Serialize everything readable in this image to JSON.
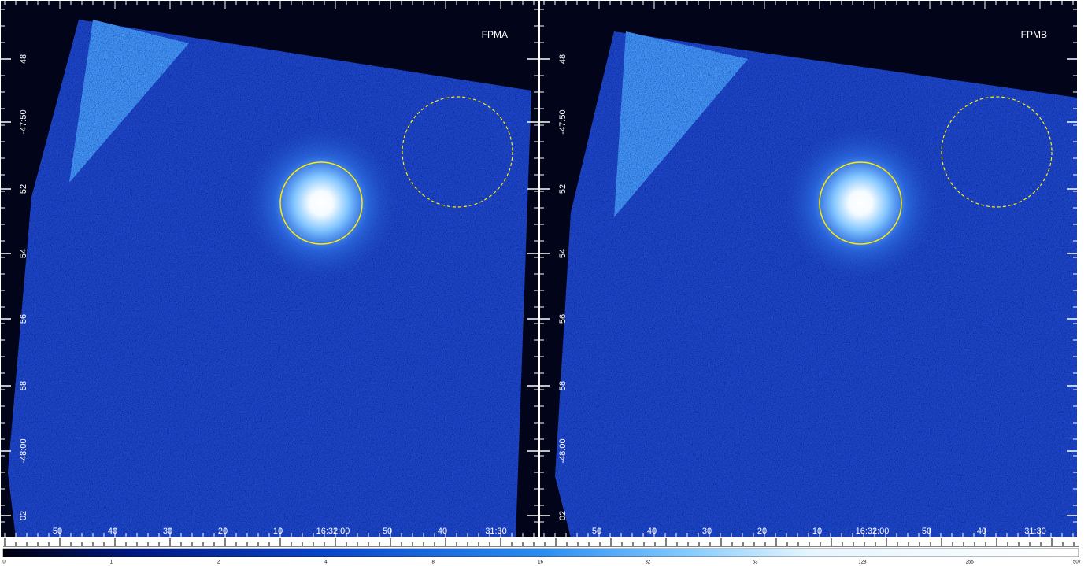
{
  "panels": [
    {
      "label": "FPMA",
      "dec_labels": [
        "48",
        "-47:50",
        "52",
        "54",
        "56",
        "58",
        "-48:00",
        "02"
      ],
      "ra_labels": [
        "50",
        "40",
        "30",
        "20",
        "10",
        "16:32:00",
        "50",
        "40",
        "31:30"
      ]
    },
    {
      "label": "FPMB",
      "dec_labels": [
        "48",
        "-47:50",
        "52",
        "54",
        "56",
        "58",
        "-48:00",
        "02"
      ],
      "ra_labels": [
        "50",
        "40",
        "30",
        "20",
        "10",
        "16:32:00",
        "50",
        "40",
        "31:30"
      ]
    }
  ],
  "colorbar": {
    "labels": [
      "0",
      "1",
      "2",
      "4",
      "8",
      "16",
      "32",
      "63",
      "128",
      "255",
      "507"
    ]
  }
}
